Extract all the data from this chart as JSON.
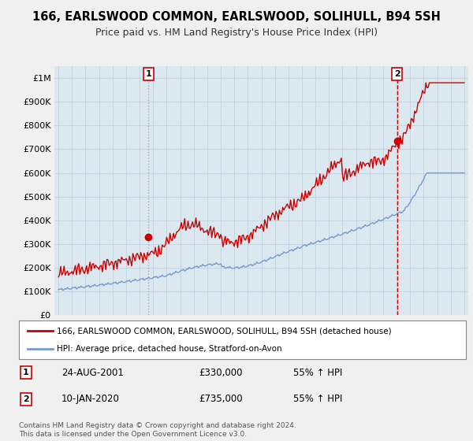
{
  "title": "166, EARLSWOOD COMMON, EARLSWOOD, SOLIHULL, B94 5SH",
  "subtitle": "Price paid vs. HM Land Registry's House Price Index (HPI)",
  "title_fontsize": 10.5,
  "subtitle_fontsize": 9,
  "red_color": "#cc0000",
  "blue_color": "#7799cc",
  "ylim": [
    0,
    1050000
  ],
  "yticks": [
    0,
    100000,
    200000,
    300000,
    400000,
    500000,
    600000,
    700000,
    800000,
    900000,
    1000000
  ],
  "ytick_labels": [
    "£0",
    "£100K",
    "£200K",
    "£300K",
    "£400K",
    "£500K",
    "£600K",
    "£700K",
    "£800K",
    "£900K",
    "£1M"
  ],
  "sale1_year": 2001.65,
  "sale1_price": 330000,
  "sale1_label": "1",
  "sale2_year": 2020.03,
  "sale2_price": 735000,
  "sale2_label": "2",
  "legend_line1": "166, EARLSWOOD COMMON, EARLSWOOD, SOLIHULL, B94 5SH (detached house)",
  "legend_line2": "HPI: Average price, detached house, Stratford-on-Avon",
  "footnote": "Contains HM Land Registry data © Crown copyright and database right 2024.\nThis data is licensed under the Open Government Licence v3.0.",
  "bg_color": "#f0f0f0",
  "plot_bg_color": "#dce8f0"
}
